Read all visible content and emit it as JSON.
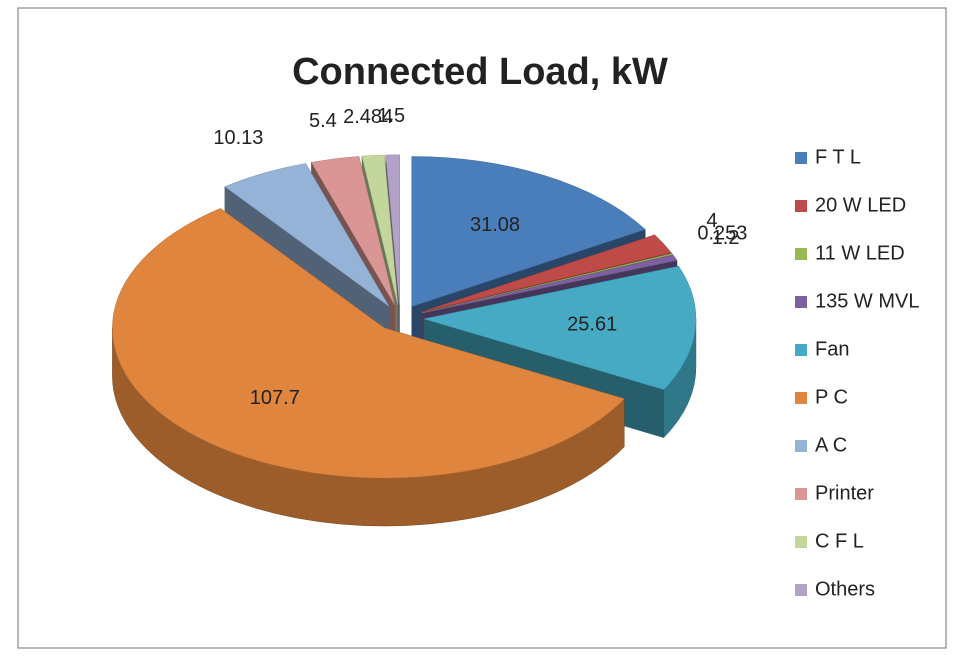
{
  "chart_data": {
    "type": "pie",
    "title": "Connected Load, kW",
    "categories": [
      "F T L",
      "20 W LED",
      "11 W LED",
      "135 W MVL",
      "Fan",
      "P  C",
      "A C",
      "Printer",
      "C F L",
      "Others"
    ],
    "values": [
      31.08,
      4,
      0.253,
      1.2,
      25.61,
      107.7,
      10.13,
      5.4,
      2.484,
      1.5
    ],
    "colors": [
      "#4a7ebb",
      "#be4b48",
      "#98b954",
      "#7d60a0",
      "#46aac5",
      "#e0853d",
      "#95b3d7",
      "#d99694",
      "#c3d69b",
      "#b3a2c7"
    ],
    "legend": "right"
  }
}
